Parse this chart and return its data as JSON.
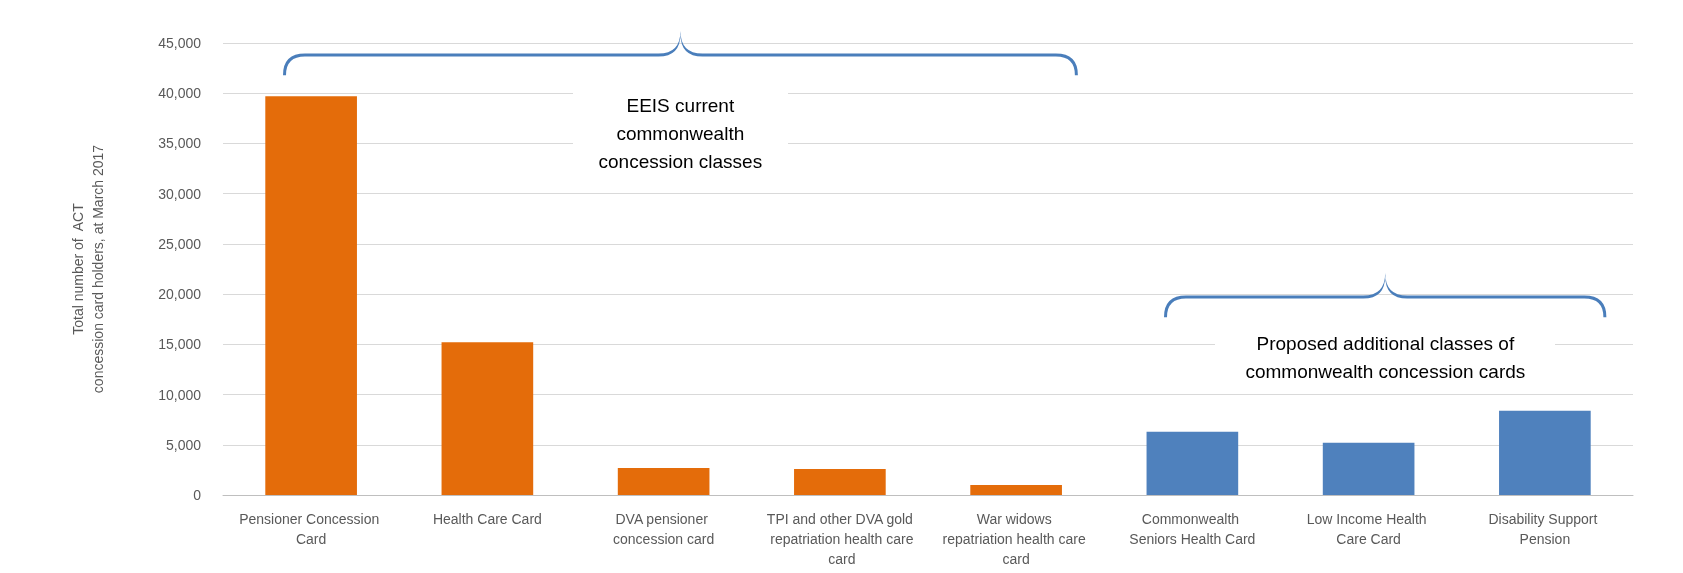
{
  "chart_data": {
    "type": "bar",
    "ylabel": "Total number of  ACT\nconcession card holders, at March 2017",
    "categories": [
      "Pensioner Concession Card",
      "Health Care Card",
      "DVA pensioner concession card",
      "TPI and other DVA gold repatriation health care card",
      "War widows repatriation health care card",
      "Commonwealth Seniors Health Card",
      "Low Income Health Care Card",
      "Disability Support Pension"
    ],
    "values": [
      39700,
      15200,
      2700,
      2600,
      1000,
      6300,
      5200,
      8400
    ],
    "colors": [
      "#e46c0a",
      "#e46c0a",
      "#e46c0a",
      "#e46c0a",
      "#e46c0a",
      "#4f81bd",
      "#4f81bd",
      "#4f81bd"
    ],
    "ylim": [
      0,
      45000
    ],
    "yticks": [
      0,
      {
        "value": 5000,
        "label": "5,000"
      },
      {
        "value": 10000,
        "label": "10,000"
      },
      {
        "value": 15000,
        "label": "15,000"
      },
      {
        "value": 20000,
        "label": "20,000"
      },
      {
        "value": 25000,
        "label": "25,000"
      },
      {
        "value": 30000,
        "label": "30,000"
      },
      {
        "value": 35000,
        "label": "35,000"
      },
      {
        "value": 40000,
        "label": "40,000"
      },
      {
        "value": 45000,
        "label": "45,000"
      }
    ],
    "grid": "y",
    "annotations": [
      "EEIS current commonwealth concession classes",
      "Proposed additional classes of commonwealth concession cards"
    ]
  }
}
